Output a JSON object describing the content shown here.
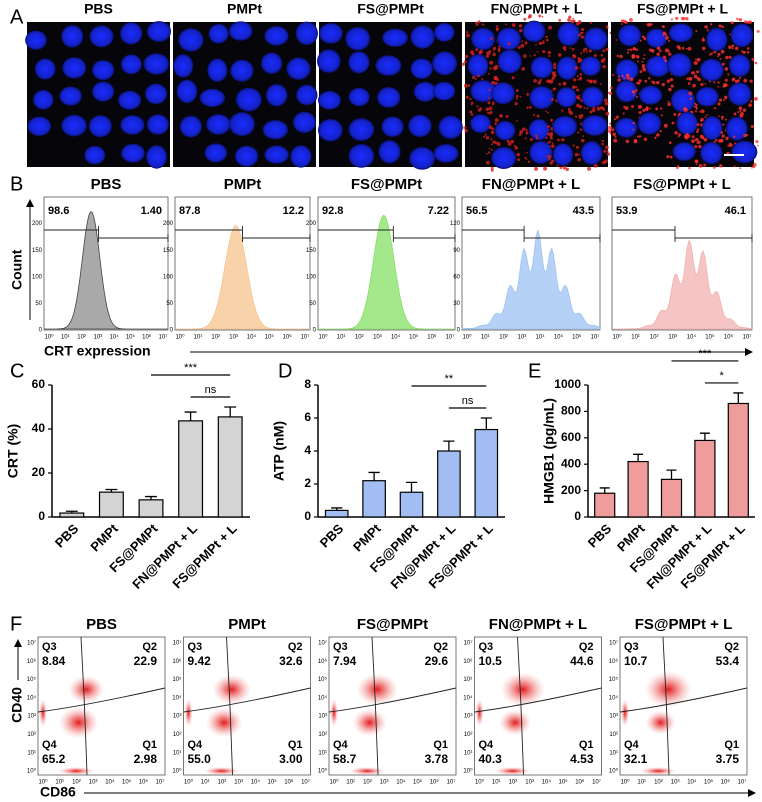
{
  "panel_labels": [
    "A",
    "B",
    "C",
    "D",
    "E",
    "F"
  ],
  "images": {
    "titles": [
      "PBS",
      "PMPt",
      "FS@PMPt",
      "FN@PMPt + L",
      "FS@PMPt + L"
    ]
  },
  "histograms": {
    "titles": [
      "PBS",
      "PMPt",
      "FS@PMPt",
      "FN@PMPt + L",
      "FS@PMPt + L"
    ],
    "gates": [
      [
        "98.6",
        "1.40"
      ],
      [
        "87.8",
        "12.2"
      ],
      [
        "92.8",
        "7.22"
      ],
      [
        "56.5",
        "43.5"
      ],
      [
        "53.9",
        "46.1"
      ]
    ],
    "y_tick_labels": [
      [
        "0",
        "50",
        "100",
        "150",
        "200"
      ],
      [
        "0",
        "50",
        "100",
        "150",
        "200"
      ],
      [
        "0",
        "50",
        "100",
        "150",
        "200"
      ],
      [
        "0",
        "30",
        "60",
        "90",
        "120"
      ],
      []
    ],
    "x_tick_labels": [
      "10⁰",
      "10¹",
      "10²",
      "10³",
      "10⁴",
      "10⁵",
      "10⁶",
      "10⁷"
    ],
    "colors": [
      "#8c8c8c",
      "#f5c48e",
      "#86e066",
      "#9cc2f2",
      "#f2b0b0"
    ],
    "y_label": "Count",
    "x_label": "CRT expression"
  },
  "chart_data": [
    {
      "type": "bar",
      "ylabel": "CRT (%)",
      "categories": [
        "PBS",
        "PMPt",
        "FS@PMPt",
        "FN@PMPt + L",
        "FS@PMPt + L"
      ],
      "values": [
        1.8,
        11.3,
        7.8,
        43.7,
        45.5
      ],
      "errors": [
        0.8,
        1.2,
        1.5,
        4,
        4.5
      ],
      "color": "#d4d4d4",
      "ylim": [
        0,
        60
      ],
      "yticks": [
        0,
        20,
        40,
        60
      ],
      "annotations": [
        "***",
        "ns"
      ]
    },
    {
      "type": "bar",
      "ylabel": "ATP (nM)",
      "categories": [
        "PBS",
        "PMPt",
        "FS@PMPt",
        "FN@PMPt + L",
        "FS@PMPt + L"
      ],
      "values": [
        0.4,
        2.2,
        1.5,
        4.0,
        5.3
      ],
      "errors": [
        0.15,
        0.5,
        0.6,
        0.6,
        0.7
      ],
      "color": "#a2bdf2",
      "ylim": [
        0,
        8
      ],
      "yticks": [
        0,
        2,
        4,
        6,
        8
      ],
      "annotations": [
        "**",
        "ns"
      ]
    },
    {
      "type": "bar",
      "ylabel": "HMGB1 (pg/mL)",
      "categories": [
        "PBS",
        "PMPt",
        "FS@PMPt",
        "FN@PMPt + L",
        "FS@PMPt + L"
      ],
      "values": [
        180,
        420,
        285,
        580,
        860
      ],
      "errors": [
        40,
        55,
        70,
        55,
        80
      ],
      "color": "#ef9c9c",
      "ylim": [
        0,
        1000
      ],
      "yticks": [
        0,
        200,
        400,
        600,
        800,
        1000
      ],
      "annotations": [
        "***",
        "*"
      ]
    }
  ],
  "density": {
    "titles": [
      "PBS",
      "PMPt",
      "FS@PMPt",
      "FN@PMPt + L",
      "FS@PMPt + L"
    ],
    "quadrant_names": [
      "Q3",
      "Q2",
      "Q4",
      "Q1"
    ],
    "quadrant_values": [
      [
        "8.84",
        "22.9",
        "65.2",
        "2.98"
      ],
      [
        "9.42",
        "32.6",
        "55.0",
        "3.00"
      ],
      [
        "7.94",
        "29.6",
        "58.7",
        "3.78"
      ],
      [
        "10.5",
        "44.6",
        "40.3",
        "4.53"
      ],
      [
        "10.7",
        "53.4",
        "32.1",
        "3.75"
      ]
    ],
    "x_tick_labels": [
      "10⁰",
      "10¹",
      "10²",
      "10³",
      "10⁴",
      "10⁵",
      "10⁶",
      "10⁷"
    ],
    "y_tick_labels": [
      "10⁰",
      "10¹",
      "10²",
      "10³",
      "10⁴",
      "10⁵",
      "10⁶",
      "10⁷"
    ],
    "x_label": "CD86",
    "y_label": "CD40"
  }
}
